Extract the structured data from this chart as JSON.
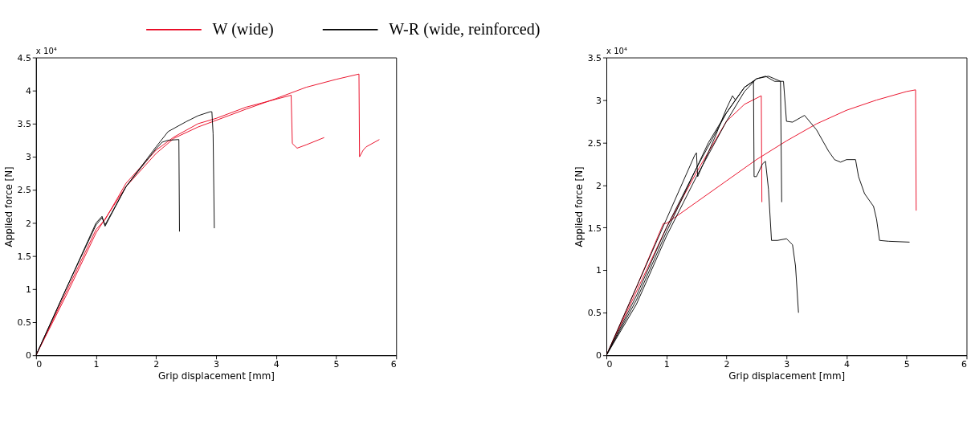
{
  "chart_data": [
    {
      "type": "line",
      "xlabel": "Grip displacement [mm]",
      "ylabel": "Applied force [N]",
      "annotations": [
        "x 10⁴"
      ],
      "xlim": [
        0,
        6
      ],
      "xticks": [
        0,
        1,
        2,
        3,
        4,
        5,
        6
      ],
      "ylim": [
        0,
        4.5
      ],
      "yticks": [
        0,
        0.5,
        1,
        1.5,
        2,
        2.5,
        3,
        3.5,
        4,
        4.5
      ],
      "grid": false,
      "legend": "top",
      "marker": "none",
      "line_style": "solid",
      "series": [
        {
          "name": "W (wide)",
          "color": "#e8001c",
          "x": [
            0,
            0.5,
            1,
            1.5,
            2,
            2.3,
            2.7,
            3,
            3.5,
            4,
            4.5,
            5,
            5.38,
            5.39,
            5.45,
            5.5,
            5.72
          ],
          "values": [
            0,
            0.9,
            1.85,
            2.55,
            3.05,
            3.28,
            3.45,
            3.55,
            3.72,
            3.88,
            4.05,
            4.17,
            4.25,
            3.0,
            3.1,
            3.15,
            3.26
          ]
        },
        {
          "color": "#e8001c",
          "x": [
            0,
            0.5,
            1,
            1.15,
            1.5,
            2,
            2.3,
            2.7,
            3,
            3.5,
            4,
            4.25,
            4.27,
            4.35,
            4.5,
            4.8
          ],
          "values": [
            0,
            0.95,
            1.9,
            2.05,
            2.6,
            3.1,
            3.3,
            3.5,
            3.58,
            3.75,
            3.87,
            3.93,
            3.2,
            3.13,
            3.18,
            3.29
          ]
        },
        {
          "name": "W-R (wide, reinforced)",
          "color": "#000000",
          "x": [
            0,
            0.5,
            1,
            1.1,
            1.15,
            1.5,
            2,
            2.2,
            2.5,
            2.7,
            2.9,
            2.93,
            2.95,
            2.97
          ],
          "values": [
            0,
            1.0,
            1.97,
            2.08,
            1.97,
            2.55,
            3.15,
            3.38,
            3.53,
            3.62,
            3.68,
            3.68,
            3.35,
            1.92
          ]
        },
        {
          "color": "#000000",
          "x": [
            0,
            0.5,
            1,
            1.1,
            1.15,
            1.5,
            2,
            2.1,
            2.2,
            2.38,
            2.39
          ],
          "values": [
            0,
            1.0,
            2.0,
            2.1,
            1.95,
            2.55,
            3.12,
            3.22,
            3.25,
            3.26,
            1.87
          ]
        }
      ]
    },
    {
      "type": "line",
      "xlabel": "Grip displacement [mm]",
      "ylabel": "Applied force [N]",
      "annotations": [
        "x 10⁴"
      ],
      "xlim": [
        0,
        6
      ],
      "xticks": [
        0,
        1,
        2,
        3,
        4,
        5,
        6
      ],
      "ylim": [
        0,
        3.5
      ],
      "yticks": [
        0,
        0.5,
        1,
        1.5,
        2,
        2.5,
        3,
        3.5
      ],
      "grid": false,
      "marker": "none",
      "line_style": "solid",
      "series": [
        {
          "color": "#e8001c",
          "x": [
            0,
            0.5,
            0.8,
            0.95,
            1.0,
            1.2,
            1.5,
            2,
            2.5,
            3,
            3.5,
            4,
            4.5,
            5,
            5.15,
            5.16
          ],
          "values": [
            0,
            0.8,
            1.3,
            1.55,
            1.55,
            1.65,
            1.8,
            2.05,
            2.3,
            2.52,
            2.72,
            2.88,
            3.0,
            3.1,
            3.12,
            1.7
          ]
        },
        {
          "color": "#e8001c",
          "x": [
            0,
            0.5,
            1,
            1.5,
            2,
            2.3,
            2.58,
            2.59
          ],
          "values": [
            0,
            0.75,
            1.5,
            2.15,
            2.75,
            2.95,
            3.05,
            1.8
          ]
        },
        {
          "color": "#000000",
          "x": [
            0,
            0.5,
            1,
            1.47,
            1.5,
            1.52,
            1.8,
            2,
            2.1,
            2.15
          ],
          "values": [
            0,
            0.8,
            1.6,
            2.35,
            2.38,
            2.1,
            2.55,
            2.9,
            3.05,
            3.0
          ]
        },
        {
          "color": "#000000",
          "x": [
            0,
            0.5,
            1,
            1.5,
            2,
            2.3,
            2.45,
            2.46,
            2.5,
            2.6,
            2.65,
            2.7,
            2.75,
            2.85,
            3.0,
            3.1,
            3.15,
            3.2
          ],
          "values": [
            0,
            0.65,
            1.45,
            2.2,
            2.85,
            3.15,
            3.22,
            2.1,
            2.1,
            2.25,
            2.28,
            1.95,
            1.35,
            1.35,
            1.37,
            1.3,
            1.05,
            0.5
          ]
        },
        {
          "color": "#000000",
          "x": [
            0,
            0.5,
            1,
            1.5,
            2,
            2.3,
            2.5,
            2.65,
            2.8,
            2.95,
            3.0,
            3.1,
            3.3,
            3.5,
            3.7,
            3.8,
            3.9,
            4.0,
            4.15,
            4.2,
            4.3,
            4.45,
            4.5,
            4.55,
            4.7,
            5.05
          ],
          "values": [
            0,
            0.6,
            1.4,
            2.1,
            2.75,
            3.1,
            3.25,
            3.28,
            3.22,
            3.22,
            2.75,
            2.74,
            2.82,
            2.65,
            2.4,
            2.3,
            2.27,
            2.3,
            2.3,
            2.1,
            1.9,
            1.75,
            1.6,
            1.35,
            1.34,
            1.33
          ]
        },
        {
          "color": "#000000",
          "x": [
            0,
            0.5,
            1,
            1.5,
            1.7,
            2,
            2.3,
            2.5,
            2.7,
            2.9,
            2.92
          ],
          "values": [
            0,
            0.7,
            1.5,
            2.2,
            2.5,
            2.85,
            3.15,
            3.25,
            3.28,
            3.22,
            1.8
          ]
        }
      ]
    }
  ]
}
